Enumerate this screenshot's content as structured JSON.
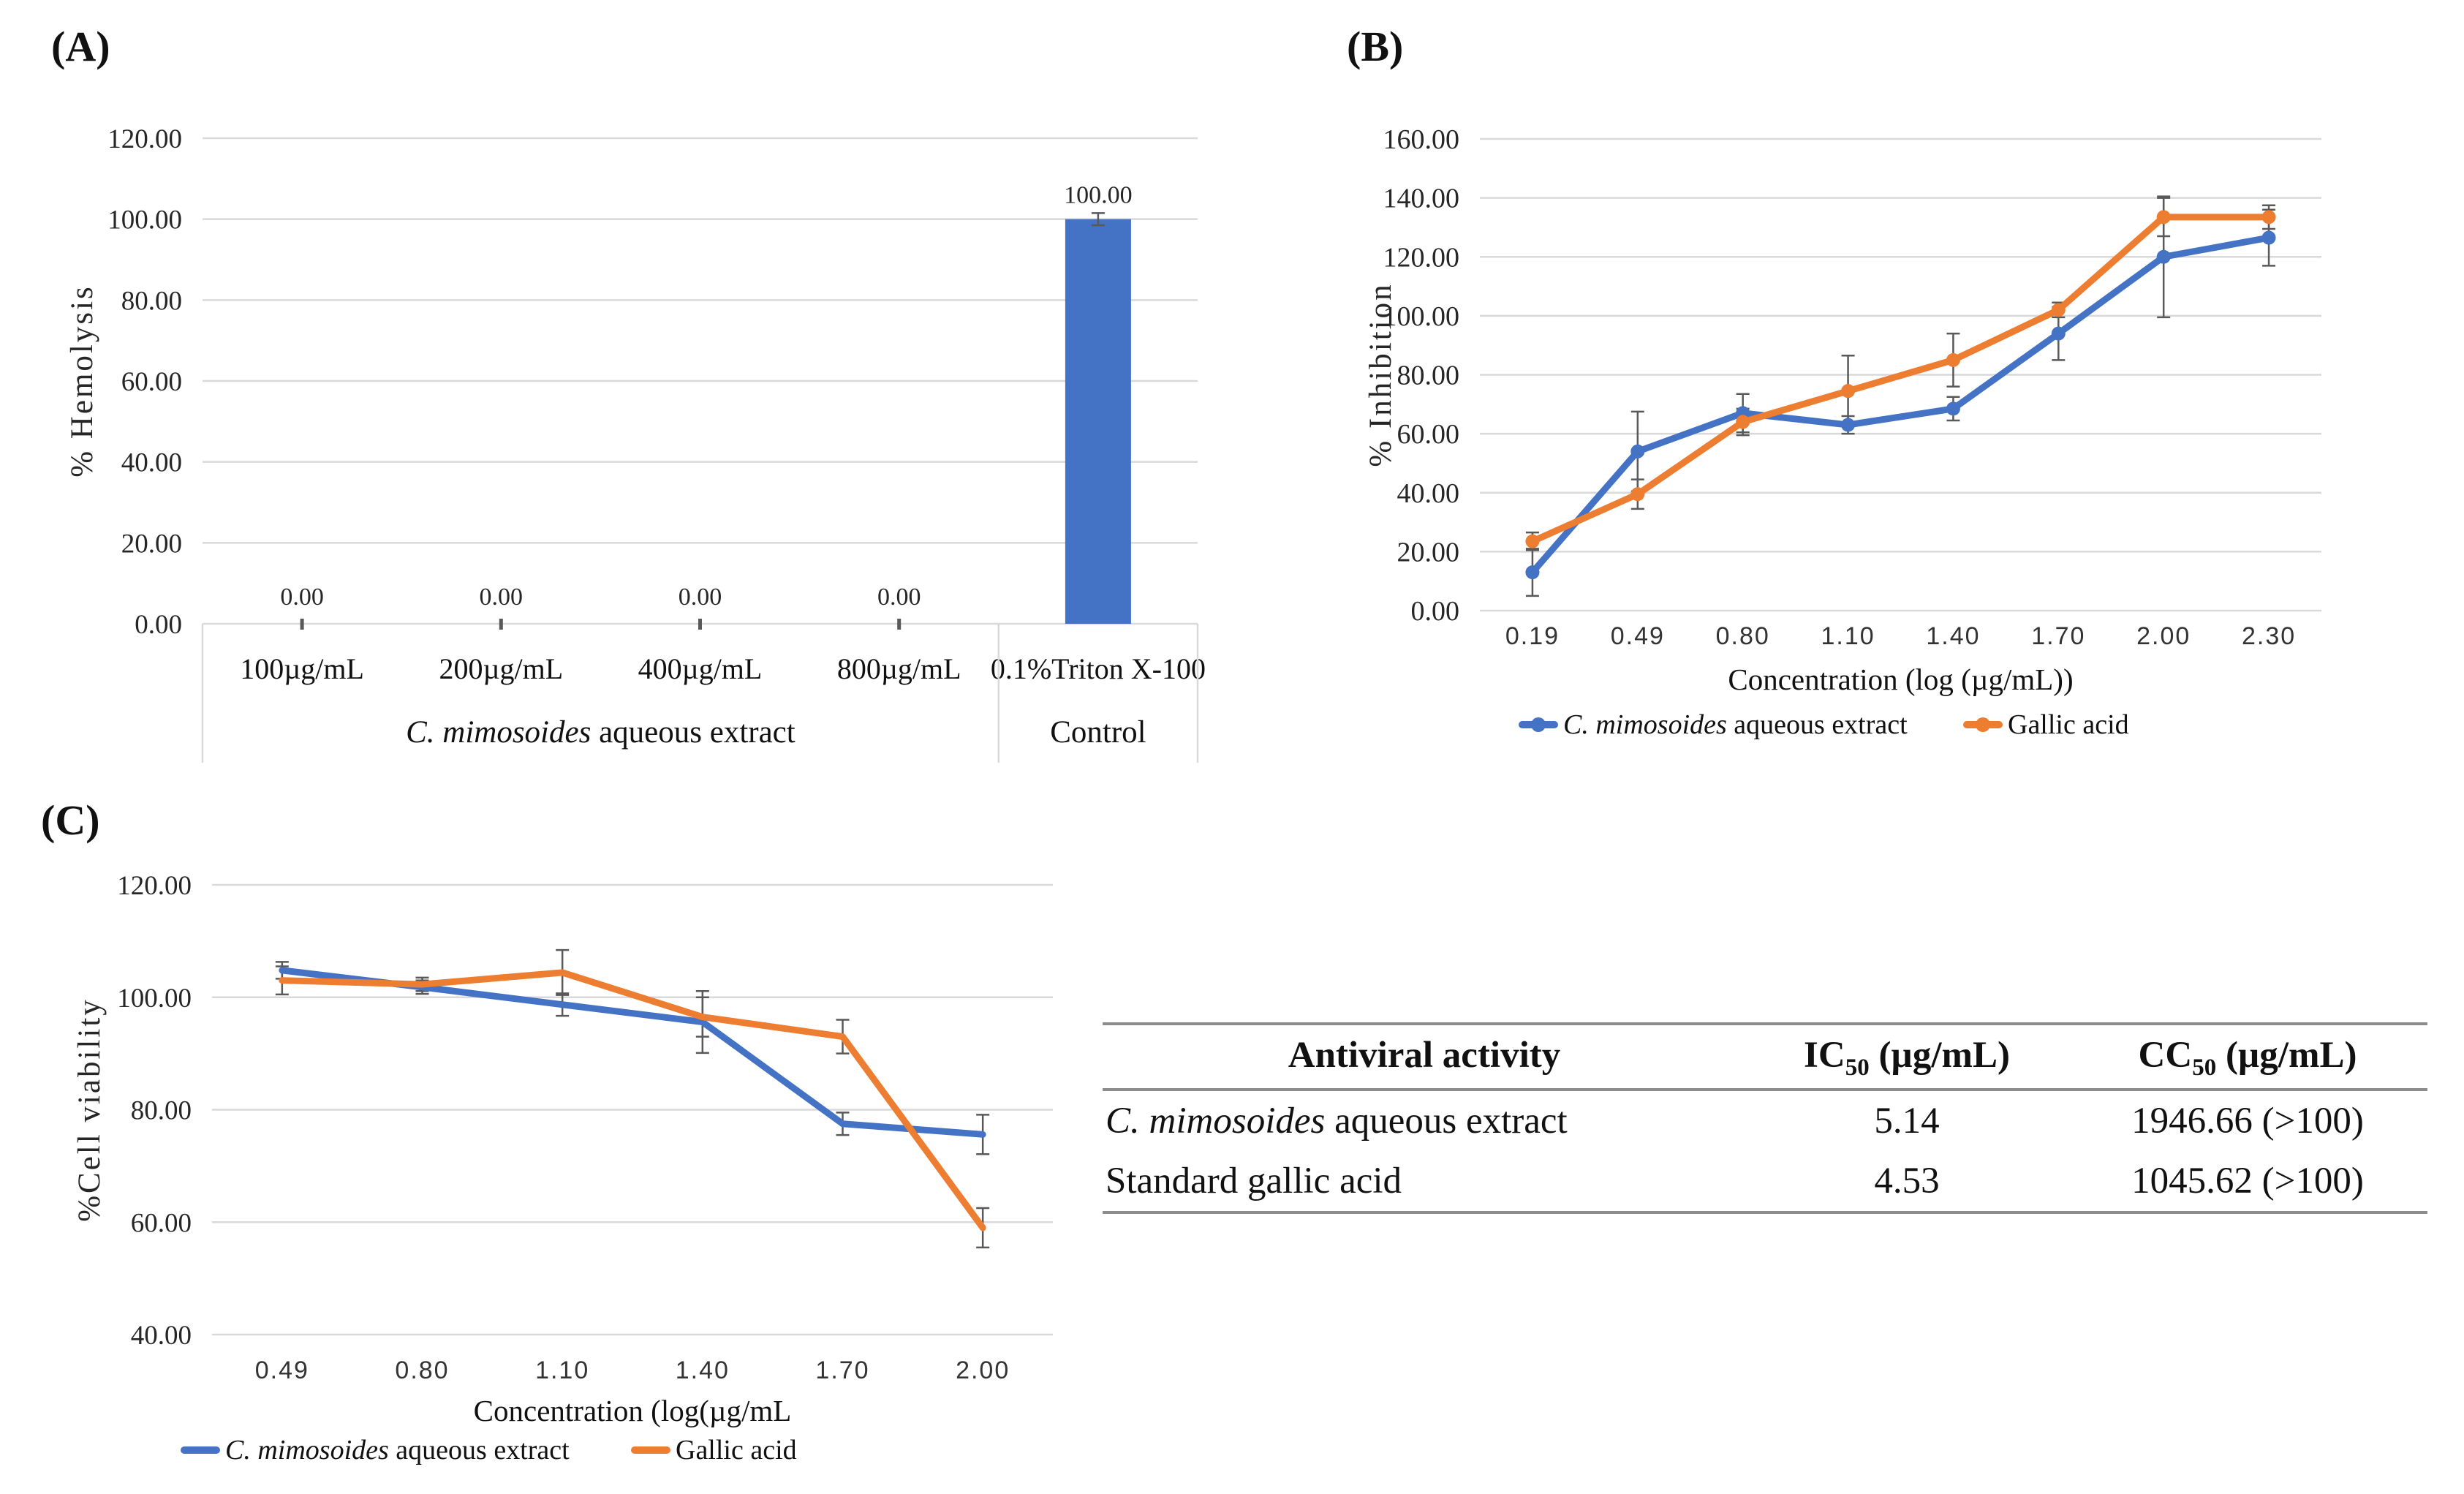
{
  "panels": {
    "a_label": "(A)",
    "b_label": "(B)",
    "c_label": "(C)"
  },
  "colors": {
    "extract_blue": "#4472C4",
    "gallic_orange": "#ED7D31",
    "gridline": "#D9D9D9",
    "error_bar": "#595959",
    "axis_text": "#262626",
    "table_rule": "#8c8c8c"
  },
  "chart_data": [
    {
      "id": "hemolysis",
      "type": "bar",
      "title": "",
      "ylabel": "% Hemolysis",
      "ylim": [
        0,
        120
      ],
      "ytick_step": 20,
      "categories": [
        "100µg/mL",
        "200µg/mL",
        "400µg/mL",
        "800µg/mL",
        "0.1%Triton X-100"
      ],
      "values": [
        0,
        0,
        0,
        0,
        100
      ],
      "data_labels": [
        "0.00",
        "0.00",
        "0.00",
        "0.00",
        "100.00"
      ],
      "bar_color": "#4472C4",
      "error": [
        0,
        0,
        0,
        0,
        1.5
      ],
      "groups": [
        {
          "italic": "C. mimosoides",
          "rest": " aqueous extract",
          "span": 4
        },
        {
          "italic": "",
          "rest": "Control",
          "span": 1
        }
      ],
      "grid": true,
      "legend_position": "none"
    },
    {
      "id": "inhibition",
      "type": "line",
      "title": "",
      "ylabel": "% Inhibition",
      "xlabel": "Concentration (log (µg/mL))",
      "ylim": [
        0,
        160
      ],
      "ytick_step": 20,
      "x": [
        "0.19",
        "0.49",
        "0.80",
        "1.10",
        "1.40",
        "1.70",
        "2.00",
        "2.30"
      ],
      "series": [
        {
          "name_italic": "C. mimosoides",
          "name_rest": " aqueous extract",
          "color": "#4472C4",
          "values": [
            13.0,
            54.0,
            67.0,
            63.0,
            68.5,
            94.0,
            120.0,
            126.5
          ],
          "err": [
            8.0,
            13.5,
            6.5,
            3.0,
            4.0,
            9.0,
            20.5,
            9.5
          ]
        },
        {
          "name_italic": "",
          "name_rest": "Gallic acid",
          "color": "#ED7D31",
          "values": [
            23.5,
            39.5,
            64.0,
            74.5,
            85.0,
            102.0,
            133.5,
            133.5
          ],
          "err": [
            3.0,
            5.0,
            4.5,
            12.0,
            9.0,
            2.5,
            6.5,
            4.0
          ]
        }
      ],
      "markers": "dot",
      "grid": true,
      "legend_position": "bottom"
    },
    {
      "id": "viability",
      "type": "line",
      "title": "",
      "ylabel": "%Cell viability",
      "xlabel": "Concentration (log(µg/mL",
      "ylim": [
        40,
        120
      ],
      "ytick_step": 20,
      "x": [
        "0.49",
        "0.80",
        "1.10",
        "1.40",
        "1.70",
        "2.00"
      ],
      "series": [
        {
          "name_italic": "C. mimosoides",
          "name_rest": " aqueous extract",
          "color": "#4472C4",
          "values": [
            104.8,
            101.8,
            98.7,
            95.6,
            77.5,
            75.6
          ],
          "err": [
            1.5,
            1.2,
            2.0,
            5.5,
            2.0,
            3.5
          ]
        },
        {
          "name_italic": "",
          "name_rest": "Gallic acid",
          "color": "#ED7D31",
          "values": [
            103.0,
            102.3,
            104.4,
            96.5,
            93.0,
            59.0
          ],
          "err": [
            2.5,
            1.2,
            4.0,
            3.5,
            3.0,
            3.5
          ]
        }
      ],
      "markers": "none",
      "grid": true,
      "legend_position": "bottom"
    }
  ],
  "table": {
    "headers": [
      {
        "pre": "Antiviral activity",
        "sub": "",
        "post": ""
      },
      {
        "pre": "IC",
        "sub": "50",
        "post": " (µg/mL)"
      },
      {
        "pre": "CC",
        "sub": "50",
        "post": " (µg/mL)"
      }
    ],
    "rows": [
      {
        "name_italic": "C. mimosoides",
        "name_rest": " aqueous extract",
        "ic50": "5.14",
        "cc50": "1946.66 (>100)"
      },
      {
        "name_italic": "",
        "name_rest": "Standard gallic acid",
        "ic50": "4.53",
        "cc50": "1045.62 (>100)"
      }
    ]
  }
}
